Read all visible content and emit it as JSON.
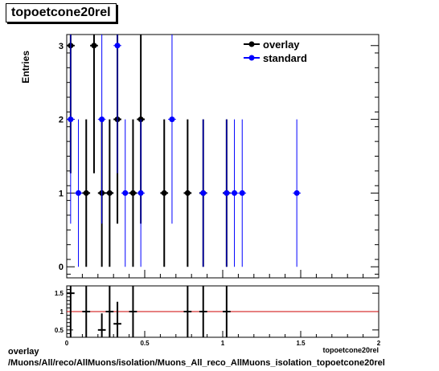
{
  "chart_data": [
    {
      "type": "scatter",
      "title": "topoetcone20rel",
      "ylabel": "Entries",
      "xlabel": "topoetcone20rel",
      "xlim": [
        0,
        2
      ],
      "ylim": [
        -0.15,
        3.15
      ],
      "yticks": [
        0,
        1,
        2,
        3
      ],
      "legend_position": "top-right",
      "series": [
        {
          "name": "overlay",
          "color": "#000000",
          "x": [
            0.025,
            0.125,
            0.175,
            0.225,
            0.275,
            0.325,
            0.425,
            0.475,
            0.625,
            0.775,
            0.875,
            1.025
          ],
          "y": [
            3,
            1,
            3,
            1,
            1,
            2,
            1,
            2,
            1,
            1,
            1,
            1
          ]
        },
        {
          "name": "standard",
          "color": "#0000ff",
          "x": [
            0.025,
            0.075,
            0.225,
            0.325,
            0.375,
            0.475,
            0.675,
            0.875,
            1.025,
            1.075,
            1.125,
            1.475
          ],
          "y": [
            2,
            1,
            2,
            3,
            1,
            1,
            2,
            1,
            1,
            1,
            1,
            1
          ]
        }
      ]
    },
    {
      "type": "scatter",
      "title": "",
      "xlim": [
        0,
        2
      ],
      "ylim": [
        0.3,
        1.7
      ],
      "xticks": [
        0,
        0.5,
        1,
        1.5,
        2
      ],
      "yticks": [
        0.5,
        1,
        1.5
      ],
      "reference_line": 1,
      "reference_color": "#cc0000",
      "x": [
        0.025,
        0.125,
        0.225,
        0.275,
        0.325,
        0.425,
        0.775,
        0.875,
        1.025
      ],
      "y": [
        1.5,
        1.0,
        0.5,
        1.0,
        0.667,
        1.0,
        1.0,
        1.0,
        1.0
      ]
    }
  ],
  "footer": {
    "line1": "overlay",
    "line2": "/Muons/All/reco/AllMuons/isolation/Muons_All_reco_AllMuons_isolation_topoetcone20rel"
  }
}
